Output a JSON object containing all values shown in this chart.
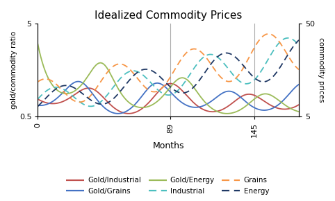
{
  "title": "Idealized Commodity Prices",
  "xlabel": "Months",
  "ylabel_left": "gold/commodity ratio",
  "ylabel_right": "commodity prices",
  "xlim": [
    0,
    175
  ],
  "ylim_left": [
    0.5,
    5
  ],
  "ylim_right": [
    5,
    50
  ],
  "xticks": [
    0,
    89,
    145
  ],
  "xtick_labels": [
    "0",
    "89",
    "145"
  ],
  "yticks_left": [
    0.5,
    5
  ],
  "yticks_right": [
    5,
    50
  ],
  "vlines": [
    89,
    145
  ],
  "colors": {
    "gold_industrial": "#c0504d",
    "gold_grains": "#4472c4",
    "gold_energy": "#9bbb59",
    "industrial": "#4cbfbf",
    "grains": "#f79646",
    "energy": "#1f3864"
  },
  "legend": [
    {
      "label": "Gold/Industrial",
      "color": "#c0504d",
      "linestyle": "solid"
    },
    {
      "label": "Gold/Grains",
      "color": "#4472c4",
      "linestyle": "solid"
    },
    {
      "label": "Gold/Energy",
      "color": "#9bbb59",
      "linestyle": "solid"
    },
    {
      "label": "Industrial",
      "color": "#4cbfbf",
      "linestyle": "dashed"
    },
    {
      "label": "Grains",
      "color": "#f79646",
      "linestyle": "dashed"
    },
    {
      "label": "Energy",
      "color": "#1f3864",
      "linestyle": "dashed"
    }
  ],
  "figsize": [
    4.82,
    2.9
  ],
  "dpi": 100
}
